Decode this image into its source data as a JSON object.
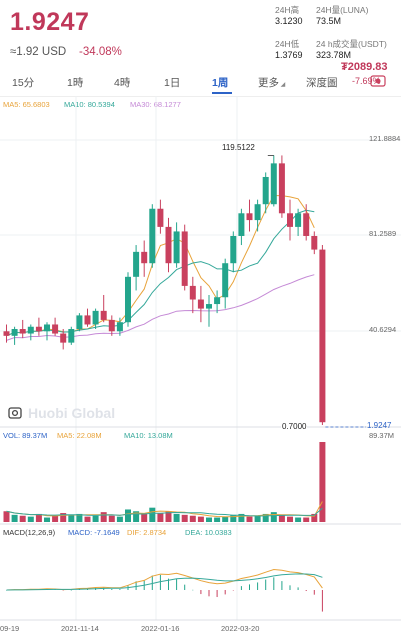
{
  "header": {
    "price": "1.9247",
    "usd_price": "≈1.92 USD",
    "change_pct": "-34.08%",
    "stats": {
      "high_label": "24H高",
      "high_value": "3.1230",
      "vol_label": "24H量(LUNA)",
      "vol_value": "73.5M",
      "low_label": "24H低",
      "low_value": "1.3769",
      "turnover_label": "24 h成交量(USDT)",
      "turnover_value": "323.78M"
    },
    "right_price": "₮2089.83",
    "right_pct": "-7.69%"
  },
  "tabs": [
    {
      "label": "15分"
    },
    {
      "label": "1時"
    },
    {
      "label": "4時"
    },
    {
      "label": "1日"
    },
    {
      "label": "1周",
      "active": true
    },
    {
      "label": "更多"
    },
    {
      "label": "深度圖"
    }
  ],
  "legend": {
    "ma5": "MA5: 65.6803",
    "ma10": "MA10: 80.5394",
    "ma30": "MA30: 68.1277",
    "vol": "VOL: 89.37M",
    "vol_ma5": "MA5: 22.08M",
    "vol_ma10": "MA10: 13.08M",
    "macd": "MACD(12,26,9)",
    "macd_val": "MACD: -7.1649",
    "dif": "DIF: 2.8734",
    "dea": "DEA: 10.0383"
  },
  "axis": {
    "y_top": "121.8884",
    "y_mid": "81.2589",
    "y_low": "40.6294",
    "vol_max": "89.37M",
    "peak_label": "119.5122",
    "low_label": "0.7000",
    "last_label": "1.9247"
  },
  "watermark": "Huobi Global",
  "dates": [
    "09-19",
    "2021-11-14",
    "2022-01-16",
    "2022-03-20"
  ],
  "colors": {
    "up": "#23a58c",
    "down": "#c9405e",
    "accent": "#2d63c7"
  },
  "chart_data": {
    "type": "candlestick",
    "title": "",
    "ylim": [
      0.7,
      121.8884
    ],
    "candles": [
      {
        "o": 42,
        "h": 45,
        "l": 37,
        "c": 40
      },
      {
        "o": 40,
        "h": 44,
        "l": 36,
        "c": 43
      },
      {
        "o": 43,
        "h": 47,
        "l": 39,
        "c": 41
      },
      {
        "o": 41,
        "h": 45,
        "l": 38,
        "c": 44
      },
      {
        "o": 44,
        "h": 48,
        "l": 40,
        "c": 42
      },
      {
        "o": 42,
        "h": 46,
        "l": 38,
        "c": 45
      },
      {
        "o": 45,
        "h": 48,
        "l": 40,
        "c": 41
      },
      {
        "o": 41,
        "h": 43,
        "l": 34,
        "c": 37
      },
      {
        "o": 37,
        "h": 44,
        "l": 36,
        "c": 43
      },
      {
        "o": 43,
        "h": 50,
        "l": 42,
        "c": 49
      },
      {
        "o": 49,
        "h": 52,
        "l": 44,
        "c": 45
      },
      {
        "o": 45,
        "h": 52,
        "l": 43,
        "c": 51
      },
      {
        "o": 51,
        "h": 58,
        "l": 46,
        "c": 47
      },
      {
        "o": 47,
        "h": 49,
        "l": 40,
        "c": 42
      },
      {
        "o": 42,
        "h": 48,
        "l": 40,
        "c": 46
      },
      {
        "o": 46,
        "h": 68,
        "l": 44,
        "c": 66
      },
      {
        "o": 66,
        "h": 80,
        "l": 60,
        "c": 77
      },
      {
        "o": 77,
        "h": 82,
        "l": 66,
        "c": 72
      },
      {
        "o": 72,
        "h": 98,
        "l": 70,
        "c": 96
      },
      {
        "o": 96,
        "h": 100,
        "l": 85,
        "c": 88
      },
      {
        "o": 88,
        "h": 92,
        "l": 68,
        "c": 72
      },
      {
        "o": 72,
        "h": 90,
        "l": 70,
        "c": 86
      },
      {
        "o": 86,
        "h": 89,
        "l": 60,
        "c": 62
      },
      {
        "o": 62,
        "h": 66,
        "l": 50,
        "c": 56
      },
      {
        "o": 56,
        "h": 62,
        "l": 46,
        "c": 52
      },
      {
        "o": 52,
        "h": 58,
        "l": 44,
        "c": 54
      },
      {
        "o": 54,
        "h": 60,
        "l": 50,
        "c": 57
      },
      {
        "o": 57,
        "h": 74,
        "l": 52,
        "c": 72
      },
      {
        "o": 72,
        "h": 86,
        "l": 68,
        "c": 84
      },
      {
        "o": 84,
        "h": 96,
        "l": 80,
        "c": 94
      },
      {
        "o": 94,
        "h": 100,
        "l": 86,
        "c": 91
      },
      {
        "o": 91,
        "h": 100,
        "l": 86,
        "c": 98
      },
      {
        "o": 98,
        "h": 112,
        "l": 94,
        "c": 110
      },
      {
        "o": 98,
        "h": 119.5,
        "l": 97,
        "c": 116
      },
      {
        "o": 116,
        "h": 119.5,
        "l": 92,
        "c": 94
      },
      {
        "o": 94,
        "h": 100,
        "l": 82,
        "c": 88
      },
      {
        "o": 88,
        "h": 96,
        "l": 84,
        "c": 94
      },
      {
        "o": 94,
        "h": 98,
        "l": 82,
        "c": 84
      },
      {
        "o": 84,
        "h": 86,
        "l": 76,
        "c": 78
      },
      {
        "o": 78,
        "h": 80,
        "l": 0.7,
        "c": 1.9247
      }
    ],
    "volume": [
      12,
      8,
      7,
      6,
      9,
      5,
      7,
      10,
      8,
      9,
      6,
      7,
      11,
      7,
      6,
      14,
      12,
      9,
      16,
      10,
      12,
      9,
      8,
      7,
      6,
      5,
      5,
      6,
      8,
      9,
      6,
      7,
      9,
      11,
      8,
      6,
      5,
      5,
      9,
      89.37
    ]
  }
}
